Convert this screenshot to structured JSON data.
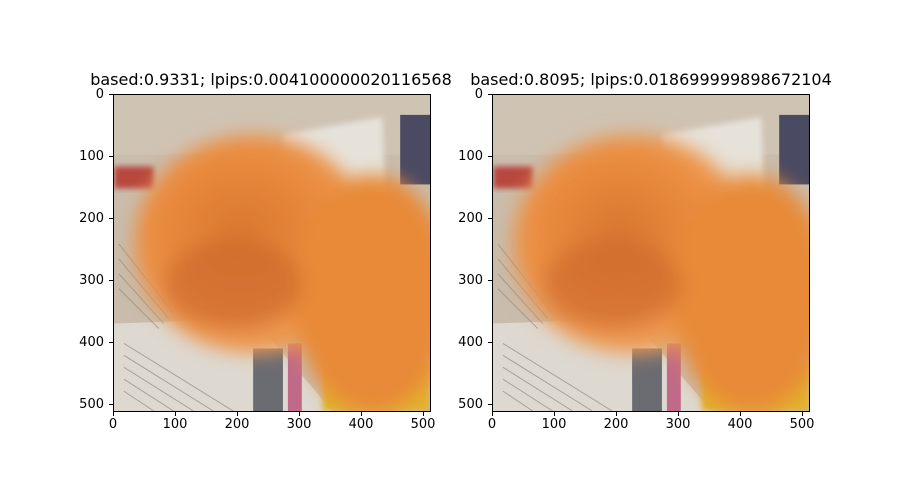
{
  "panels": [
    {
      "title": "based:0.9331; lpips:0.004100000020116568",
      "y_ticks": [
        "0",
        "100",
        "200",
        "300",
        "400",
        "500"
      ],
      "x_ticks": [
        "0",
        "100",
        "200",
        "300",
        "400",
        "500"
      ]
    },
    {
      "title": "based:0.8095; lpips:0.018699999898672104",
      "y_ticks": [
        "0",
        "100",
        "200",
        "300",
        "400",
        "500"
      ],
      "x_ticks": [
        "0",
        "100",
        "200",
        "300",
        "400",
        "500"
      ]
    }
  ]
}
